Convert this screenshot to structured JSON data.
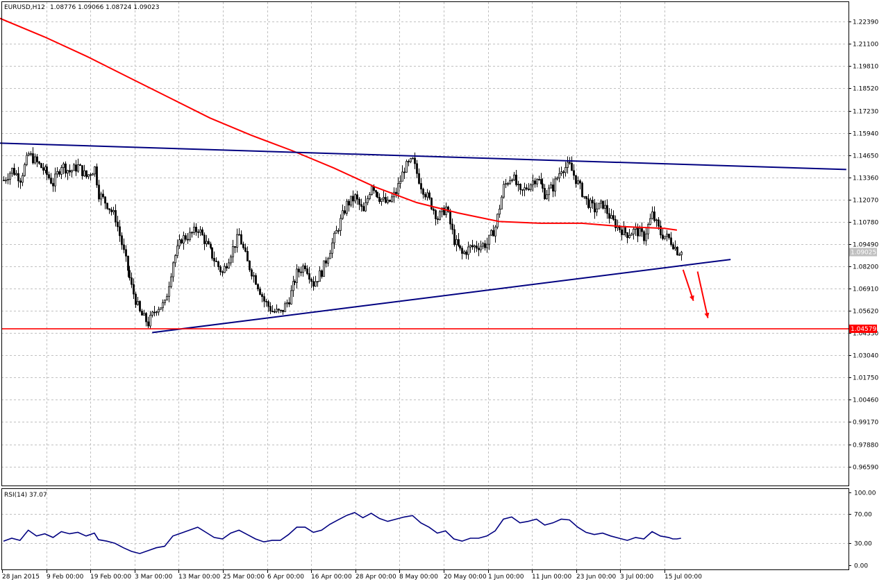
{
  "header": {
    "symbol": "EURUSD,H12",
    "ohlc": "1.08776 1.09066 1.08724 1.09023"
  },
  "rsi_header": "RSI(14) 37.07",
  "chart_data": [
    {
      "type": "candlestick",
      "title": "EURUSD,H12",
      "ylim": [
        0.9659,
        1.2239
      ],
      "y_ticks": [
        "1.22390",
        "1.21100",
        "1.19810",
        "1.18520",
        "1.17230",
        "1.15940",
        "1.14650",
        "1.13360",
        "1.12070",
        "1.10780",
        "1.09490",
        "1.08200",
        "1.06910",
        "1.05620",
        "1.04330",
        "1.03040",
        "1.01750",
        "1.00460",
        "0.99170",
        "0.97880",
        "0.96590"
      ],
      "x_labels": [
        "28 Jan 2015",
        "9 Feb 00:00",
        "19 Feb 00:00",
        "3 Mar 00:00",
        "13 Mar 00:00",
        "25 Mar 00:00",
        "6 Apr 00:00",
        "16 Apr 00:00",
        "28 Apr 00:00",
        "8 May 00:00",
        "20 May 00:00",
        "1 Jun 00:00",
        "11 Jun 00:00",
        "23 Jun 00:00",
        "3 Jul 00:00",
        "15 Jul 00:00"
      ],
      "grid": true,
      "close_path": [
        [
          0,
          1.132
        ],
        [
          4,
          1.138
        ],
        [
          8,
          1.133
        ],
        [
          12,
          1.147
        ],
        [
          16,
          1.142
        ],
        [
          20,
          1.137
        ],
        [
          24,
          1.13
        ],
        [
          28,
          1.141
        ],
        [
          32,
          1.137
        ],
        [
          36,
          1.14
        ],
        [
          40,
          1.134
        ],
        [
          44,
          1.139
        ],
        [
          46,
          1.124
        ],
        [
          50,
          1.118
        ],
        [
          54,
          1.11
        ],
        [
          58,
          1.09
        ],
        [
          62,
          1.07
        ],
        [
          66,
          1.055
        ],
        [
          70,
          1.049
        ],
        [
          74,
          1.058
        ],
        [
          78,
          1.06
        ],
        [
          82,
          1.085
        ],
        [
          86,
          1.098
        ],
        [
          90,
          1.1
        ],
        [
          94,
          1.104
        ],
        [
          98,
          1.095
        ],
        [
          102,
          1.086
        ],
        [
          106,
          1.078
        ],
        [
          110,
          1.09
        ],
        [
          114,
          1.1
        ],
        [
          118,
          1.084
        ],
        [
          122,
          1.074
        ],
        [
          126,
          1.062
        ],
        [
          130,
          1.056
        ],
        [
          134,
          1.055
        ],
        [
          138,
          1.063
        ],
        [
          142,
          1.078
        ],
        [
          146,
          1.083
        ],
        [
          150,
          1.072
        ],
        [
          154,
          1.079
        ],
        [
          158,
          1.092
        ],
        [
          162,
          1.105
        ],
        [
          166,
          1.118
        ],
        [
          170,
          1.122
        ],
        [
          174,
          1.113
        ],
        [
          178,
          1.13
        ],
        [
          182,
          1.122
        ],
        [
          186,
          1.118
        ],
        [
          190,
          1.125
        ],
        [
          194,
          1.139
        ],
        [
          198,
          1.143
        ],
        [
          202,
          1.129
        ],
        [
          206,
          1.12
        ],
        [
          210,
          1.11
        ],
        [
          214,
          1.116
        ],
        [
          218,
          1.097
        ],
        [
          222,
          1.089
        ],
        [
          226,
          1.093
        ],
        [
          230,
          1.094
        ],
        [
          234,
          1.095
        ],
        [
          238,
          1.105
        ],
        [
          242,
          1.128
        ],
        [
          246,
          1.135
        ],
        [
          250,
          1.124
        ],
        [
          254,
          1.129
        ],
        [
          258,
          1.134
        ],
        [
          262,
          1.124
        ],
        [
          266,
          1.128
        ],
        [
          270,
          1.139
        ],
        [
          274,
          1.14
        ],
        [
          278,
          1.13
        ],
        [
          282,
          1.12
        ],
        [
          286,
          1.115
        ],
        [
          290,
          1.118
        ],
        [
          294,
          1.109
        ],
        [
          298,
          1.104
        ],
        [
          302,
          1.101
        ],
        [
          306,
          1.103
        ],
        [
          310,
          1.099
        ],
        [
          314,
          1.112
        ],
        [
          318,
          1.101
        ],
        [
          322,
          1.098
        ],
        [
          324,
          1.095
        ],
        [
          326,
          1.091
        ],
        [
          328,
          1.0902
        ]
      ],
      "ma_path": [
        [
          -2,
          1.226
        ],
        [
          20,
          1.215
        ],
        [
          40,
          1.204
        ],
        [
          60,
          1.192
        ],
        [
          80,
          1.18
        ],
        [
          100,
          1.168
        ],
        [
          120,
          1.158
        ],
        [
          140,
          1.149
        ],
        [
          160,
          1.139
        ],
        [
          180,
          1.128
        ],
        [
          200,
          1.119
        ],
        [
          220,
          1.113
        ],
        [
          240,
          1.108
        ],
        [
          260,
          1.107
        ],
        [
          280,
          1.107
        ],
        [
          300,
          1.105
        ],
        [
          320,
          1.104
        ],
        [
          326,
          1.103
        ]
      ],
      "lines": [
        {
          "kind": "resistance-trendline",
          "color": "#000080",
          "from": [
            -2,
            1.1535
          ],
          "to": [
            408,
            1.1382
          ]
        },
        {
          "kind": "support-trendline",
          "color": "#000080",
          "from": [
            72,
            1.0436
          ],
          "to": [
            352,
            1.086
          ]
        },
        {
          "kind": "horizontal-level",
          "color": "#ff0000",
          "value": 1.04579
        }
      ],
      "arrows": [
        {
          "color": "#ff0000",
          "from": [
            329,
            1.08
          ],
          "to": [
            334,
            1.062
          ]
        },
        {
          "color": "#ff0000",
          "from": [
            336,
            1.079
          ],
          "to": [
            341,
            1.052
          ]
        }
      ],
      "price_tags": [
        {
          "text": "1.09025",
          "value": 1.09025,
          "bg": "#c0c0c0",
          "fg": "#ffffff"
        },
        {
          "text": "1.04579",
          "value": 1.04579,
          "bg": "#ff0000",
          "fg": "#ffffff"
        }
      ],
      "colors": {
        "candle": "#000000",
        "bull_fill": "#ffffff",
        "ma": "#ff0000",
        "grid": "#c0c0c0"
      }
    },
    {
      "type": "line",
      "title": "RSI(14) 37.07",
      "ylim": [
        0,
        100
      ],
      "y_ticks": [
        "100.00",
        "70.00",
        "30.00",
        "0.00"
      ],
      "series": [
        {
          "name": "RSI(14)",
          "color": "#000080",
          "points": [
            [
              0,
              33
            ],
            [
              4,
              37
            ],
            [
              8,
              34
            ],
            [
              12,
              48
            ],
            [
              16,
              40
            ],
            [
              20,
              43
            ],
            [
              24,
              38
            ],
            [
              28,
              46
            ],
            [
              32,
              43
            ],
            [
              36,
              45
            ],
            [
              40,
              40
            ],
            [
              44,
              44
            ],
            [
              46,
              35
            ],
            [
              50,
              33
            ],
            [
              54,
              30
            ],
            [
              58,
              24
            ],
            [
              62,
              19
            ],
            [
              66,
              16
            ],
            [
              70,
              20
            ],
            [
              74,
              24
            ],
            [
              78,
              26
            ],
            [
              82,
              40
            ],
            [
              86,
              44
            ],
            [
              90,
              48
            ],
            [
              94,
              52
            ],
            [
              98,
              45
            ],
            [
              102,
              38
            ],
            [
              106,
              36
            ],
            [
              110,
              44
            ],
            [
              114,
              48
            ],
            [
              118,
              42
            ],
            [
              122,
              36
            ],
            [
              126,
              32
            ],
            [
              130,
              34
            ],
            [
              134,
              34
            ],
            [
              138,
              42
            ],
            [
              142,
              52
            ],
            [
              146,
              52
            ],
            [
              150,
              45
            ],
            [
              154,
              48
            ],
            [
              158,
              56
            ],
            [
              162,
              62
            ],
            [
              166,
              68
            ],
            [
              170,
              72
            ],
            [
              174,
              65
            ],
            [
              178,
              71
            ],
            [
              182,
              64
            ],
            [
              186,
              60
            ],
            [
              190,
              63
            ],
            [
              194,
              66
            ],
            [
              198,
              68
            ],
            [
              202,
              58
            ],
            [
              206,
              52
            ],
            [
              210,
              44
            ],
            [
              214,
              47
            ],
            [
              218,
              36
            ],
            [
              222,
              33
            ],
            [
              226,
              37
            ],
            [
              230,
              37
            ],
            [
              234,
              40
            ],
            [
              238,
              47
            ],
            [
              242,
              63
            ],
            [
              246,
              66
            ],
            [
              250,
              58
            ],
            [
              254,
              60
            ],
            [
              258,
              63
            ],
            [
              262,
              55
            ],
            [
              266,
              58
            ],
            [
              270,
              63
            ],
            [
              274,
              62
            ],
            [
              278,
              52
            ],
            [
              282,
              45
            ],
            [
              286,
              42
            ],
            [
              290,
              44
            ],
            [
              294,
              40
            ],
            [
              298,
              37
            ],
            [
              302,
              34
            ],
            [
              306,
              38
            ],
            [
              310,
              36
            ],
            [
              314,
              46
            ],
            [
              318,
              40
            ],
            [
              322,
              38
            ],
            [
              324,
              36
            ],
            [
              326,
              36
            ],
            [
              328,
              37
            ]
          ]
        }
      ]
    }
  ]
}
